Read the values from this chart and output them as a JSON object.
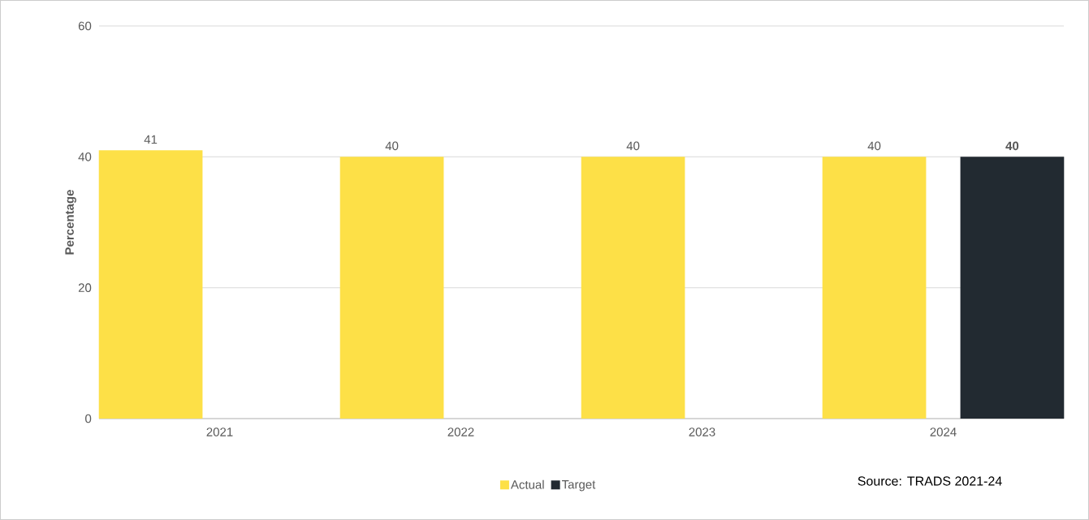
{
  "chart_data": {
    "type": "bar",
    "ylabel": "Percentage",
    "categories": [
      "2021",
      "2022",
      "2023",
      "2024"
    ],
    "series": [
      {
        "name": "Actual",
        "color": "#fde047",
        "values": [
          41,
          40,
          40,
          40
        ]
      },
      {
        "name": "Target",
        "color": "#222a31",
        "values": [
          null,
          null,
          null,
          40
        ]
      }
    ],
    "ylim": [
      0,
      60
    ],
    "yticks": [
      0,
      20,
      40,
      60
    ],
    "grid": "y",
    "legend": "bottom",
    "data_labels": true,
    "annotations": [
      "Source: TRADS 2021-24"
    ]
  }
}
